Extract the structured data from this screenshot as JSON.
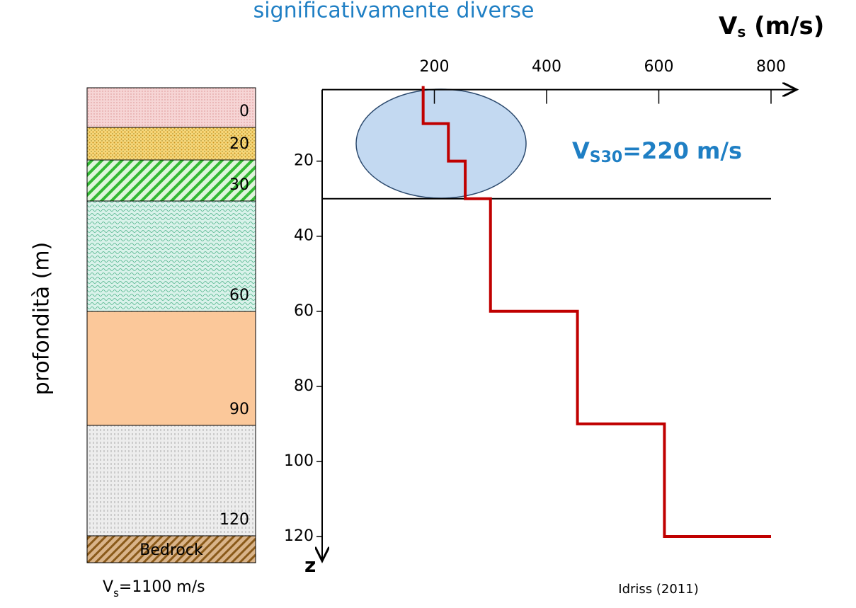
{
  "chart_data": {
    "type": "line",
    "title": "significativamente diverse",
    "xlabel": [
      "V",
      "s",
      " (m/s)"
    ],
    "ylabel": "profondità (m)",
    "zlabel": "z",
    "x": [
      180,
      180,
      225,
      225,
      255,
      255,
      300,
      300,
      455,
      455,
      610,
      610,
      800
    ],
    "values": [
      0,
      10,
      10,
      20,
      20,
      30,
      30,
      60,
      60,
      90,
      90,
      120,
      120
    ],
    "color": "#c00000",
    "xlim": [
      0,
      800
    ],
    "xticks": [
      200,
      400,
      600,
      800
    ],
    "ylim": [
      0,
      125
    ],
    "yticks": [
      20,
      40,
      60,
      80,
      100,
      120
    ],
    "reference_depth": 30,
    "annotation": [
      "V",
      "S30",
      "=220 m/s"
    ],
    "source": "Idriss (2011)",
    "layers": [
      {
        "label": "0",
        "color": "#f6d5d5"
      },
      {
        "label": "20",
        "color": "#f7d77a"
      },
      {
        "label": "30",
        "color": "#dff5dc"
      },
      {
        "label": "60",
        "color": "#d9f2ea"
      },
      {
        "label": "90",
        "color": "#fbc89a"
      },
      {
        "label": "120",
        "color": "#ededed"
      },
      {
        "label": "Bedrock",
        "color": "#d9b48a"
      }
    ],
    "bedrock_vs": [
      "V",
      "s",
      "=1100 m/s"
    ]
  }
}
